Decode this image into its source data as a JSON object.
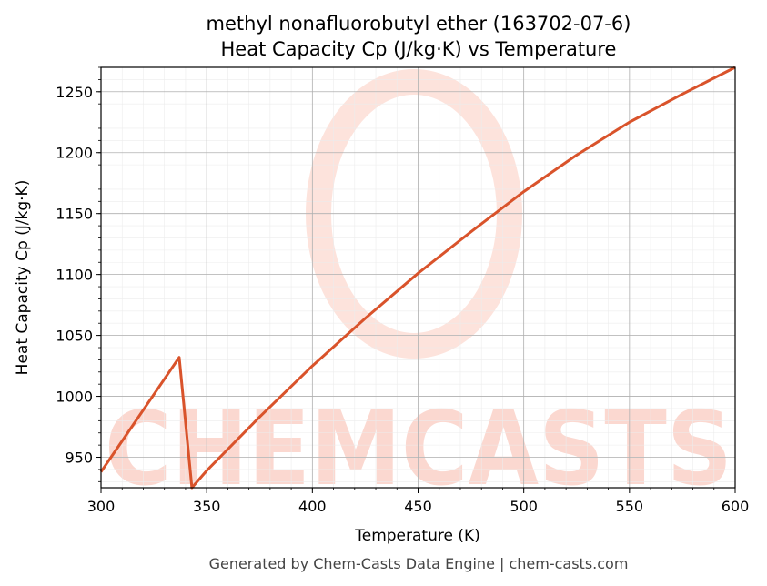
{
  "chart_data": {
    "type": "line",
    "title": "methyl nonafluorobutyl ether (163702-07-6)",
    "subtitle": "Heat Capacity Cp (J/kg·K) vs Temperature",
    "xlabel": "Temperature (K)",
    "ylabel": "Heat Capacity Cp (J/kg·K)",
    "xlim": [
      300,
      600
    ],
    "ylim": [
      925,
      1270
    ],
    "x_ticks": [
      300,
      350,
      400,
      450,
      500,
      550,
      600
    ],
    "y_ticks": [
      950,
      1000,
      1050,
      1100,
      1150,
      1200,
      1250
    ],
    "grid": true,
    "series": [
      {
        "color": "#d9532b",
        "x": [
          300,
          337,
          343,
          350,
          375,
          400,
          425,
          450,
          475,
          500,
          525,
          550,
          575,
          600
        ],
        "y": [
          938,
          1032,
          925,
          939,
          983,
          1025,
          1064,
          1101,
          1135,
          1168,
          1198,
          1225,
          1248,
          1270
        ]
      }
    ]
  },
  "watermark": {
    "text": "CHEMCASTS",
    "color": "#fbd8d0"
  },
  "footer": {
    "text": "Generated by Chem-Casts Data Engine | chem-casts.com"
  }
}
